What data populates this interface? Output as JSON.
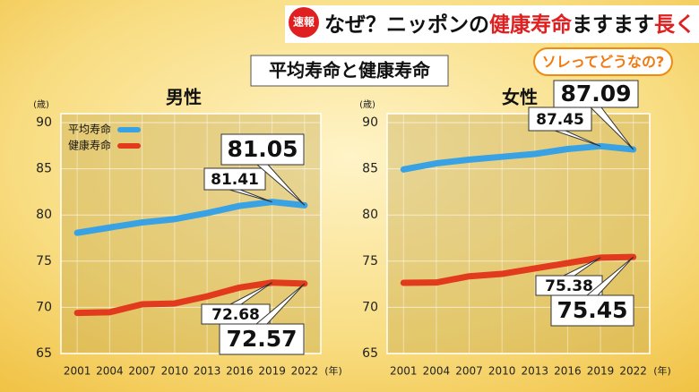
{
  "header": {
    "badge": "速報",
    "headline": [
      "なぜ？ニッポンの",
      "健康寿命",
      "ますます",
      "長く"
    ],
    "subtitle": "ソレってどうなの?",
    "title": "平均寿命と健康寿命"
  },
  "chart_data": [
    {
      "type": "line",
      "title": "男性",
      "y_label": "(歳)",
      "x_label": "(年)",
      "categories": [
        "2001",
        "2004",
        "2007",
        "2010",
        "2013",
        "2016",
        "2019",
        "2022"
      ],
      "series": [
        {
          "name": "平均寿命",
          "color": "#38a2e4",
          "values": [
            78.07,
            78.64,
            79.19,
            79.55,
            80.21,
            80.98,
            81.41,
            81.05
          ]
        },
        {
          "name": "健康寿命",
          "color": "#e23a1c",
          "values": [
            69.4,
            69.47,
            70.33,
            70.42,
            71.19,
            72.14,
            72.68,
            72.57
          ]
        }
      ],
      "ylim": [
        65,
        90
      ],
      "yticks": [
        65,
        70,
        75,
        80,
        85,
        90
      ],
      "grid": true,
      "legend": true
    },
    {
      "type": "line",
      "title": "女性",
      "y_label": "(歳)",
      "x_label": "(年)",
      "categories": [
        "2001",
        "2004",
        "2007",
        "2010",
        "2013",
        "2016",
        "2019",
        "2022"
      ],
      "series": [
        {
          "name": "平均寿命",
          "color": "#38a2e4",
          "values": [
            84.93,
            85.59,
            85.99,
            86.3,
            86.61,
            87.14,
            87.45,
            87.09
          ]
        },
        {
          "name": "健康寿命",
          "color": "#e23a1c",
          "values": [
            72.65,
            72.69,
            73.36,
            73.62,
            74.21,
            74.79,
            75.38,
            75.45
          ]
        }
      ],
      "ylim": [
        65,
        90
      ],
      "yticks": [
        65,
        70,
        75,
        80,
        85,
        90
      ],
      "grid": true,
      "legend": false
    }
  ]
}
